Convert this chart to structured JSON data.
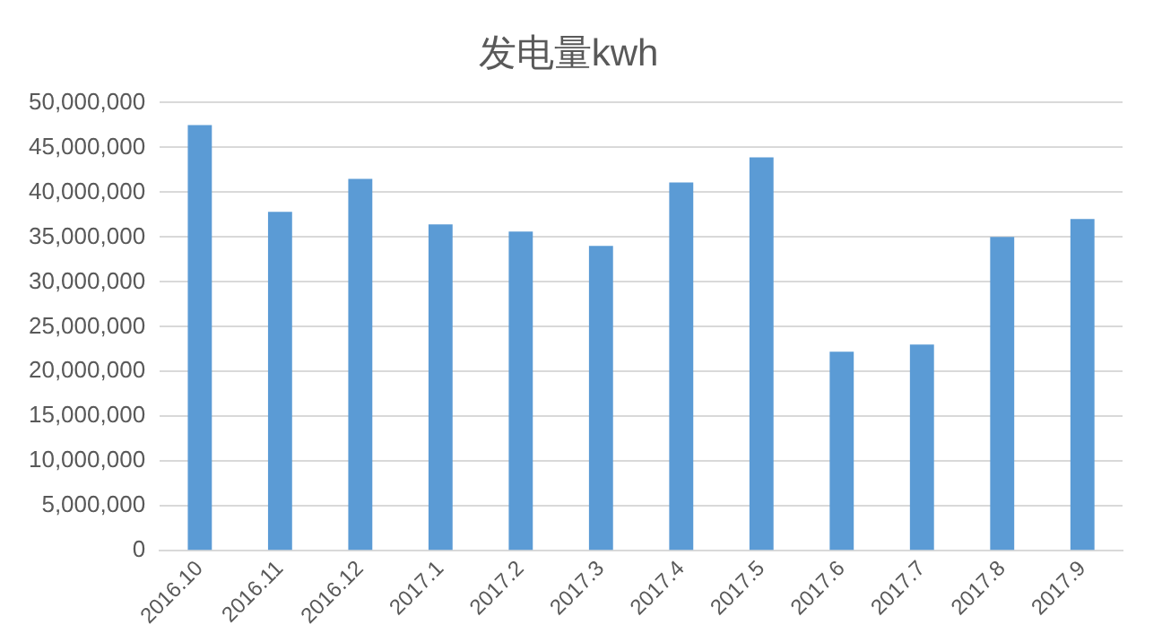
{
  "chart_data": {
    "type": "bar",
    "title": "发电量kwh",
    "categories": [
      "2016.10",
      "2016.11",
      "2016.12",
      "2017.1",
      "2017.2",
      "2017.3",
      "2017.4",
      "2017.5",
      "2017.6",
      "2017.7",
      "2017.8",
      "2017.9"
    ],
    "values": [
      47500000,
      37800000,
      41500000,
      36400000,
      35600000,
      34000000,
      41100000,
      43900000,
      22200000,
      23000000,
      35000000,
      37000000
    ],
    "color": "#5b9bd5",
    "ylim": [
      0,
      50000000
    ],
    "yticks": [
      0,
      {
        "value": 5000000,
        "label": "5,000,000"
      },
      {
        "value": 10000000,
        "label": "10,000,000"
      },
      {
        "value": 15000000,
        "label": "15,000,000"
      },
      {
        "value": 20000000,
        "label": "20,000,000"
      },
      {
        "value": 25000000,
        "label": "25,000,000"
      },
      {
        "value": 30000000,
        "label": "30,000,000"
      },
      {
        "value": 35000000,
        "label": "35,000,000"
      },
      {
        "value": 40000000,
        "label": "40,000,000"
      },
      {
        "value": 45000000,
        "label": "45,000,000"
      },
      {
        "value": 50000000,
        "label": "50,000,000"
      }
    ],
    "grid": "y",
    "legend": false
  }
}
